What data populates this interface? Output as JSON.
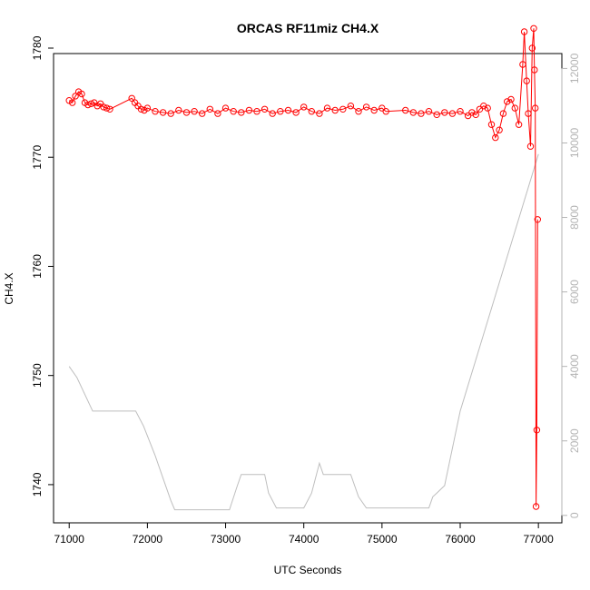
{
  "chart_data": {
    "type": "line",
    "title": "ORCAS RF11miz CH4.X",
    "xlabel": "UTC Seconds",
    "ylabel": "CH4.X",
    "xlim": [
      70800,
      77300
    ],
    "ylim": [
      1736.5,
      1779.5
    ],
    "y2lim": [
      -200,
      12400
    ],
    "x_ticks": [
      71000,
      72000,
      73000,
      74000,
      75000,
      76000,
      77000
    ],
    "y_ticks": [
      1740,
      1750,
      1760,
      1770,
      1780
    ],
    "y2_ticks": [
      0,
      2000,
      4000,
      6000,
      8000,
      10000,
      12000
    ],
    "colors": {
      "ch4": "#ff0000",
      "altitude": "#bebebe",
      "axis": "#000000",
      "right_axis": "#b3b3b3"
    },
    "series": [
      {
        "axis": "left",
        "style": "points-and-line",
        "color": "#ff0000",
        "x": [
          71000,
          71040,
          71080,
          71120,
          71160,
          71200,
          71240,
          71280,
          71320,
          71360,
          71400,
          71440,
          71480,
          71520,
          71800,
          71840,
          71880,
          71920,
          71960,
          72000,
          72100,
          72200,
          72300,
          72400,
          72500,
          72600,
          72700,
          72800,
          72900,
          73000,
          73100,
          73200,
          73300,
          73400,
          73500,
          73600,
          73700,
          73800,
          73900,
          74000,
          74100,
          74200,
          74300,
          74400,
          74500,
          74600,
          74700,
          74800,
          74900,
          75000,
          75050,
          75300,
          75400,
          75500,
          75600,
          75700,
          75800,
          75900,
          76000,
          76100,
          76150,
          76200,
          76250,
          76300,
          76350,
          76400,
          76450,
          76500,
          76550,
          76600,
          76650,
          76700,
          76750,
          76800,
          76820,
          76850,
          76870,
          76900,
          76920,
          76940,
          76950,
          76960,
          76970,
          76980,
          76990
        ],
        "values": [
          1775.2,
          1775.0,
          1775.6,
          1776.0,
          1775.8,
          1775.0,
          1774.8,
          1774.9,
          1775.0,
          1774.7,
          1774.9,
          1774.6,
          1774.5,
          1774.4,
          1775.4,
          1775.0,
          1774.7,
          1774.4,
          1774.3,
          1774.5,
          1774.2,
          1774.1,
          1774.0,
          1774.3,
          1774.1,
          1774.2,
          1774.0,
          1774.4,
          1774.0,
          1774.5,
          1774.2,
          1774.1,
          1774.3,
          1774.2,
          1774.4,
          1774.0,
          1774.2,
          1774.3,
          1774.1,
          1774.6,
          1774.2,
          1774.0,
          1774.5,
          1774.3,
          1774.4,
          1774.7,
          1774.2,
          1774.6,
          1774.3,
          1774.5,
          1774.2,
          1774.3,
          1774.1,
          1774.0,
          1774.2,
          1773.9,
          1774.1,
          1774.0,
          1774.2,
          1773.8,
          1774.1,
          1773.9,
          1774.4,
          1774.7,
          1774.5,
          1773.0,
          1771.8,
          1772.5,
          1774.0,
          1775.1,
          1775.3,
          1774.5,
          1773.0,
          1778.5,
          1781.5,
          1777.0,
          1774.0,
          1771.0,
          1780.0,
          1781.8,
          1778.0,
          1774.5,
          1738.0,
          1745.0,
          1764.3
        ]
      },
      {
        "axis": "right",
        "style": "line",
        "color": "#bebebe",
        "x": [
          71000,
          71100,
          71300,
          71850,
          71950,
          72100,
          72200,
          72300,
          72350,
          73050,
          73150,
          73200,
          73500,
          73550,
          73650,
          73850,
          74000,
          74100,
          74200,
          74250,
          74600,
          74700,
          74800,
          75600,
          75650,
          75700,
          75800,
          76000,
          77000
        ],
        "values": [
          4000,
          3700,
          2800,
          2800,
          2400,
          1600,
          1000,
          400,
          150,
          150,
          800,
          1100,
          1100,
          600,
          200,
          200,
          200,
          600,
          1400,
          1100,
          1100,
          500,
          200,
          200,
          500,
          600,
          800,
          2800,
          9700
        ]
      }
    ]
  }
}
